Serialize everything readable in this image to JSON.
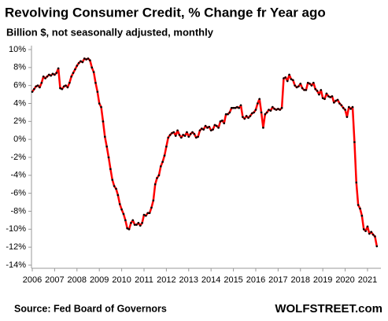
{
  "chart_data": {
    "type": "line",
    "title": "Revolving Consumer Credit, % Change fr Year ago",
    "subtitle": "Billion $, not seasonally adjusted, monthly",
    "source": "Source: Fed Board of Governors",
    "brand": "WOLFSTREET.com",
    "xlim": [
      2006,
      2021.6
    ],
    "xticks": [
      2006,
      2007,
      2008,
      2009,
      2010,
      2011,
      2012,
      2013,
      2014,
      2015,
      2016,
      2017,
      2018,
      2019,
      2020,
      2021
    ],
    "ylim": [
      -14,
      10
    ],
    "yticks": [
      {
        "value": -14,
        "label": "-14%"
      },
      {
        "value": -12,
        "label": "-12%"
      },
      {
        "value": -10,
        "label": "-10%"
      },
      {
        "value": -8,
        "label": "-8%"
      },
      {
        "value": -6,
        "label": "-6%"
      },
      {
        "value": -4,
        "label": "-4%"
      },
      {
        "value": -2,
        "label": "-2%"
      },
      {
        "value": 0,
        "label": "0%"
      },
      {
        "value": 2,
        "label": "2%"
      },
      {
        "value": 4,
        "label": "4%"
      },
      {
        "value": 6,
        "label": "6%"
      },
      {
        "value": 8,
        "label": "8%"
      },
      {
        "value": 10,
        "label": "10%"
      }
    ],
    "grid": false,
    "x": [
      2006,
      2006.083,
      2006.167,
      2006.25,
      2006.333,
      2006.417,
      2006.5,
      2006.583,
      2006.667,
      2006.75,
      2006.833,
      2006.917,
      2007,
      2007.083,
      2007.167,
      2007.25,
      2007.333,
      2007.417,
      2007.5,
      2007.583,
      2007.667,
      2007.75,
      2007.833,
      2007.917,
      2008,
      2008.083,
      2008.167,
      2008.25,
      2008.333,
      2008.417,
      2008.5,
      2008.583,
      2008.667,
      2008.75,
      2008.833,
      2008.917,
      2009,
      2009.083,
      2009.167,
      2009.25,
      2009.333,
      2009.417,
      2009.5,
      2009.583,
      2009.667,
      2009.75,
      2009.833,
      2009.917,
      2010,
      2010.083,
      2010.167,
      2010.25,
      2010.333,
      2010.417,
      2010.5,
      2010.583,
      2010.667,
      2010.75,
      2010.833,
      2010.917,
      2011,
      2011.083,
      2011.167,
      2011.25,
      2011.333,
      2011.417,
      2011.5,
      2011.583,
      2011.667,
      2011.75,
      2011.833,
      2011.917,
      2012,
      2012.083,
      2012.167,
      2012.25,
      2012.333,
      2012.417,
      2012.5,
      2012.583,
      2012.667,
      2012.75,
      2012.833,
      2012.917,
      2013,
      2013.083,
      2013.167,
      2013.25,
      2013.333,
      2013.417,
      2013.5,
      2013.583,
      2013.667,
      2013.75,
      2013.833,
      2013.917,
      2014,
      2014.083,
      2014.167,
      2014.25,
      2014.333,
      2014.417,
      2014.5,
      2014.583,
      2014.667,
      2014.75,
      2014.833,
      2014.917,
      2015,
      2015.083,
      2015.167,
      2015.25,
      2015.333,
      2015.417,
      2015.5,
      2015.583,
      2015.667,
      2015.75,
      2015.833,
      2015.917,
      2016,
      2016.083,
      2016.167,
      2016.25,
      2016.333,
      2016.417,
      2016.5,
      2016.583,
      2016.667,
      2016.75,
      2016.833,
      2016.917,
      2017,
      2017.083,
      2017.167,
      2017.25,
      2017.333,
      2017.417,
      2017.5,
      2017.583,
      2017.667,
      2017.75,
      2017.833,
      2017.917,
      2018,
      2018.083,
      2018.167,
      2018.25,
      2018.333,
      2018.417,
      2018.5,
      2018.583,
      2018.667,
      2018.75,
      2018.833,
      2018.917,
      2019,
      2019.083,
      2019.167,
      2019.25,
      2019.333,
      2019.417,
      2019.5,
      2019.583,
      2019.667,
      2019.75,
      2019.833,
      2019.917,
      2020,
      2020.083,
      2020.167,
      2020.25,
      2020.333,
      2020.417,
      2020.5,
      2020.583,
      2020.667,
      2020.75,
      2020.833,
      2020.917,
      2021,
      2021.083,
      2021.167,
      2021.25,
      2021.333,
      2021.417
    ],
    "series": [
      {
        "name": "Revolving Consumer Credit",
        "color": "#ff0000",
        "marker_color": "#000000",
        "values": [
          5.3,
          5.6,
          5.9,
          6.0,
          5.8,
          6.3,
          7.0,
          6.8,
          7.0,
          7.2,
          7.1,
          7.3,
          7.2,
          7.4,
          7.9,
          5.7,
          5.6,
          5.9,
          6.0,
          5.8,
          6.3,
          7.0,
          7.4,
          7.8,
          8.2,
          8.5,
          8.7,
          8.6,
          9.0,
          8.9,
          9.0,
          8.8,
          8.0,
          7.5,
          6.3,
          5.3,
          4.0,
          3.6,
          2.0,
          0.3,
          -0.8,
          -2.0,
          -3.3,
          -4.5,
          -5.2,
          -5.5,
          -6.2,
          -7.2,
          -7.8,
          -8.3,
          -9.0,
          -9.9,
          -10.0,
          -9.3,
          -9.0,
          -9.5,
          -9.5,
          -9.3,
          -9.6,
          -9.3,
          -8.4,
          -8.5,
          -8.2,
          -8.2,
          -7.6,
          -6.8,
          -5.0,
          -4.3,
          -4.0,
          -3.0,
          -2.5,
          -1.8,
          -0.8,
          0.2,
          0.5,
          0.7,
          0.8,
          0.4,
          1.0,
          0.5,
          0.2,
          0.5,
          0.4,
          0.8,
          0.3,
          0.6,
          0.8,
          0.6,
          0.2,
          0.3,
          1.0,
          1.2,
          1.1,
          1.5,
          1.3,
          1.4,
          1.0,
          1.1,
          1.6,
          1.5,
          1.3,
          2.0,
          2.1,
          1.8,
          2.8,
          2.8,
          3.0,
          3.5,
          3.5,
          3.5,
          3.6,
          3.5,
          3.8,
          2.5,
          2.3,
          2.6,
          2.4,
          2.6,
          2.9,
          3.0,
          3.3,
          4.0,
          4.5,
          3.0,
          1.3,
          2.8,
          3.0,
          3.3,
          3.2,
          3.6,
          3.4,
          3.3,
          3.4,
          3.3,
          3.5,
          6.8,
          6.9,
          6.5,
          7.2,
          6.7,
          6.6,
          6.0,
          5.8,
          5.9,
          6.2,
          5.7,
          5.5,
          5.5,
          6.3,
          6.2,
          6.0,
          6.3,
          5.6,
          5.4,
          5.0,
          5.5,
          4.6,
          4.5,
          5.1,
          4.8,
          4.7,
          4.8,
          4.1,
          4.3,
          4.4,
          4.0,
          3.8,
          3.5,
          3.3,
          2.5,
          3.6,
          3.4,
          3.6,
          -0.3,
          -4.8,
          -7.3,
          -7.7,
          -8.5,
          -10.0,
          -10.2,
          -9.7,
          -10.5,
          -10.3,
          -10.6,
          -10.8,
          -11.9
        ]
      }
    ]
  }
}
